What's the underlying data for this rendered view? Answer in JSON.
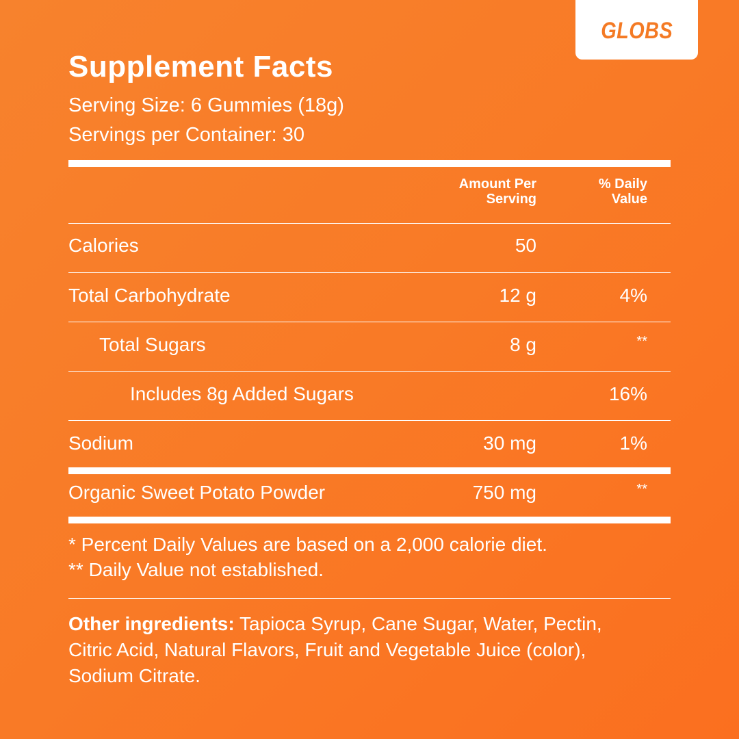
{
  "brand": {
    "name": "GLOBS",
    "tab_bg": "#ffffff",
    "text_color": "#f47a24"
  },
  "background": {
    "color": "#f97a26"
  },
  "panel": {
    "title": "Supplement Facts",
    "serving_size": "Serving Size: 6 Gummies (18g)",
    "servings_per_container": "Servings per Container: 30"
  },
  "table": {
    "headers": {
      "amount_line1": "Amount Per",
      "amount_line2": "Serving",
      "dv_line1": "% Daily",
      "dv_line2": "Value"
    },
    "rows": [
      {
        "label": "Calories",
        "amount": "50",
        "dv": ""
      },
      {
        "label": "Total Carbohydrate",
        "amount": "12 g",
        "dv": "4%"
      },
      {
        "label": "Total Sugars",
        "amount": "8 g",
        "dv": "**"
      },
      {
        "label": "Includes 8g Added Sugars",
        "amount": "",
        "dv": "16%"
      },
      {
        "label": "Sodium",
        "amount": "30 mg",
        "dv": "1%"
      },
      {
        "label": "Organic Sweet Potato Powder",
        "amount": "750 mg",
        "dv": "**"
      }
    ]
  },
  "footnotes": {
    "line1": "* Percent Daily Values are based on a 2,000 calorie diet.",
    "line2": "** Daily Value not established."
  },
  "ingredients": {
    "label": "Other ingredients:",
    "text": " Tapioca Syrup, Cane Sugar, Water, Pectin, Citric Acid, Natural Flavors, Fruit and Vegetable Juice (color), Sodium Citrate."
  }
}
